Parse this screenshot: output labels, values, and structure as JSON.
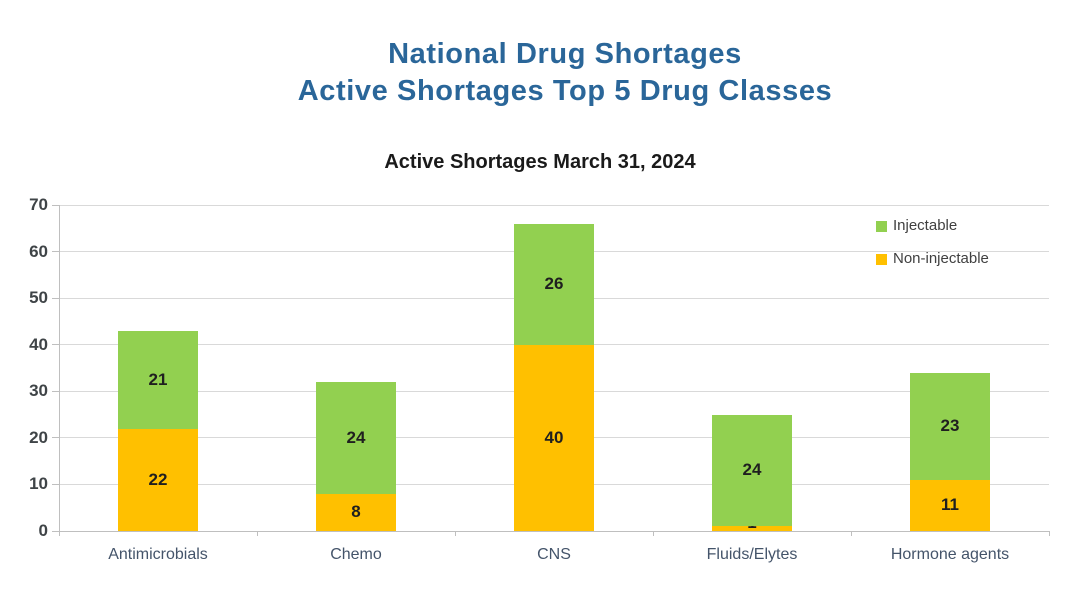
{
  "page_title": {
    "line1": "National Drug Shortages",
    "line2": "Active Shortages Top 5 Drug Classes"
  },
  "chart_data": {
    "type": "bar",
    "stacked": true,
    "title": "Active Shortages March 31, 2024",
    "categories": [
      "Antimicrobials",
      "Chemo",
      "CNS",
      "Fluids/Elytes",
      "Hormone agents"
    ],
    "series": [
      {
        "name": "Non-injectable",
        "color": "#FFC000",
        "values": [
          22,
          8,
          40,
          1,
          11
        ]
      },
      {
        "name": "Injectable",
        "color": "#92D050",
        "values": [
          21,
          24,
          26,
          24,
          23
        ]
      }
    ],
    "totals": [
      43,
      32,
      66,
      25,
      34
    ],
    "ylim": [
      0,
      70
    ],
    "ytick_step": 10,
    "grid": true,
    "legend_position": "top-right",
    "legend": [
      {
        "label": "Injectable",
        "color": "#92D050"
      },
      {
        "label": "Non-injectable",
        "color": "#FFC000"
      }
    ]
  },
  "colors": {
    "title": "#2A6699",
    "chart_title": "#1A1A1A",
    "grid": "#D9D9D9",
    "axis": "#BFBFBF",
    "value_label": "#1F1F1F",
    "x_label": "#44546A",
    "y_label": "#3F4447"
  }
}
